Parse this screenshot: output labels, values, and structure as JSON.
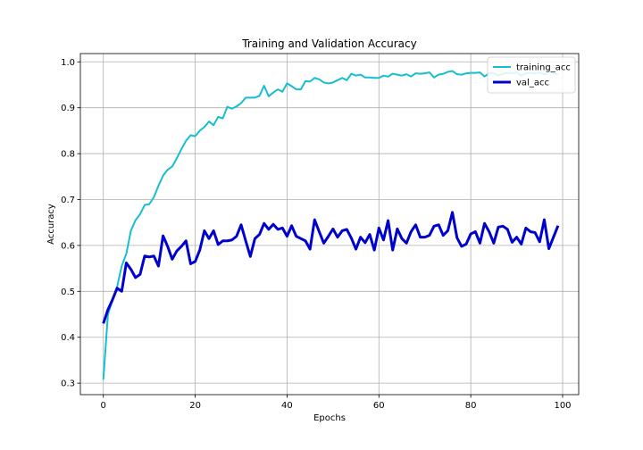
{
  "chart_data": {
    "type": "line",
    "title": "Training and Validation Accuracy",
    "xlabel": "Epochs",
    "ylabel": "Accuracy",
    "xlim": [
      -5,
      103.5
    ],
    "ylim": [
      0.275,
      1.018
    ],
    "xticks": [
      0,
      20,
      40,
      60,
      80,
      100
    ],
    "yticks": [
      0.3,
      0.4,
      0.5,
      0.6,
      0.7,
      0.8,
      0.9,
      1.0
    ],
    "ytick_labels": [
      "0.3",
      "0.4",
      "0.5",
      "0.6",
      "0.7",
      "0.8",
      "0.9",
      "1.0"
    ],
    "grid": true,
    "legend_position": "top-right",
    "series": [
      {
        "name": "training_acc",
        "color": "#17becf",
        "values": [
          0.308,
          0.45,
          0.48,
          0.51,
          0.555,
          0.582,
          0.632,
          0.655,
          0.668,
          0.688,
          0.69,
          0.705,
          0.73,
          0.752,
          0.765,
          0.772,
          0.79,
          0.81,
          0.828,
          0.84,
          0.838,
          0.85,
          0.858,
          0.87,
          0.862,
          0.88,
          0.877,
          0.902,
          0.898,
          0.903,
          0.91,
          0.922,
          0.922,
          0.922,
          0.926,
          0.948,
          0.925,
          0.933,
          0.94,
          0.935,
          0.953,
          0.947,
          0.94,
          0.94,
          0.958,
          0.957,
          0.965,
          0.962,
          0.955,
          0.953,
          0.955,
          0.96,
          0.965,
          0.96,
          0.974,
          0.97,
          0.972,
          0.966,
          0.966,
          0.965,
          0.965,
          0.97,
          0.968,
          0.974,
          0.972,
          0.97,
          0.973,
          0.968,
          0.975,
          0.974,
          0.975,
          0.977,
          0.966,
          0.972,
          0.974,
          0.978,
          0.98,
          0.973,
          0.972,
          0.975,
          0.976,
          0.976,
          0.977,
          0.968,
          0.975,
          0.975,
          0.97,
          0.974,
          0.976,
          0.975,
          0.977,
          0.97,
          0.975,
          0.976,
          0.975,
          0.977,
          0.972,
          0.978,
          0.975,
          0.973
        ]
      },
      {
        "name": "val_acc",
        "color": "#0000cd",
        "values": [
          0.43,
          0.46,
          0.482,
          0.507,
          0.5,
          0.562,
          0.548,
          0.53,
          0.537,
          0.577,
          0.575,
          0.577,
          0.555,
          0.621,
          0.598,
          0.57,
          0.588,
          0.598,
          0.61,
          0.56,
          0.565,
          0.59,
          0.632,
          0.615,
          0.632,
          0.602,
          0.61,
          0.61,
          0.612,
          0.62,
          0.645,
          0.61,
          0.576,
          0.615,
          0.624,
          0.648,
          0.635,
          0.646,
          0.635,
          0.638,
          0.62,
          0.643,
          0.62,
          0.615,
          0.61,
          0.592,
          0.656,
          0.63,
          0.605,
          0.62,
          0.636,
          0.618,
          0.632,
          0.635,
          0.616,
          0.592,
          0.618,
          0.606,
          0.624,
          0.59,
          0.638,
          0.612,
          0.654,
          0.59,
          0.636,
          0.615,
          0.605,
          0.63,
          0.645,
          0.618,
          0.618,
          0.622,
          0.642,
          0.645,
          0.622,
          0.632,
          0.672,
          0.617,
          0.598,
          0.603,
          0.625,
          0.63,
          0.605,
          0.648,
          0.63,
          0.605,
          0.64,
          0.642,
          0.635,
          0.607,
          0.618,
          0.603,
          0.638,
          0.63,
          0.628,
          0.608,
          0.656,
          0.593,
          0.618,
          0.643
        ]
      }
    ]
  }
}
